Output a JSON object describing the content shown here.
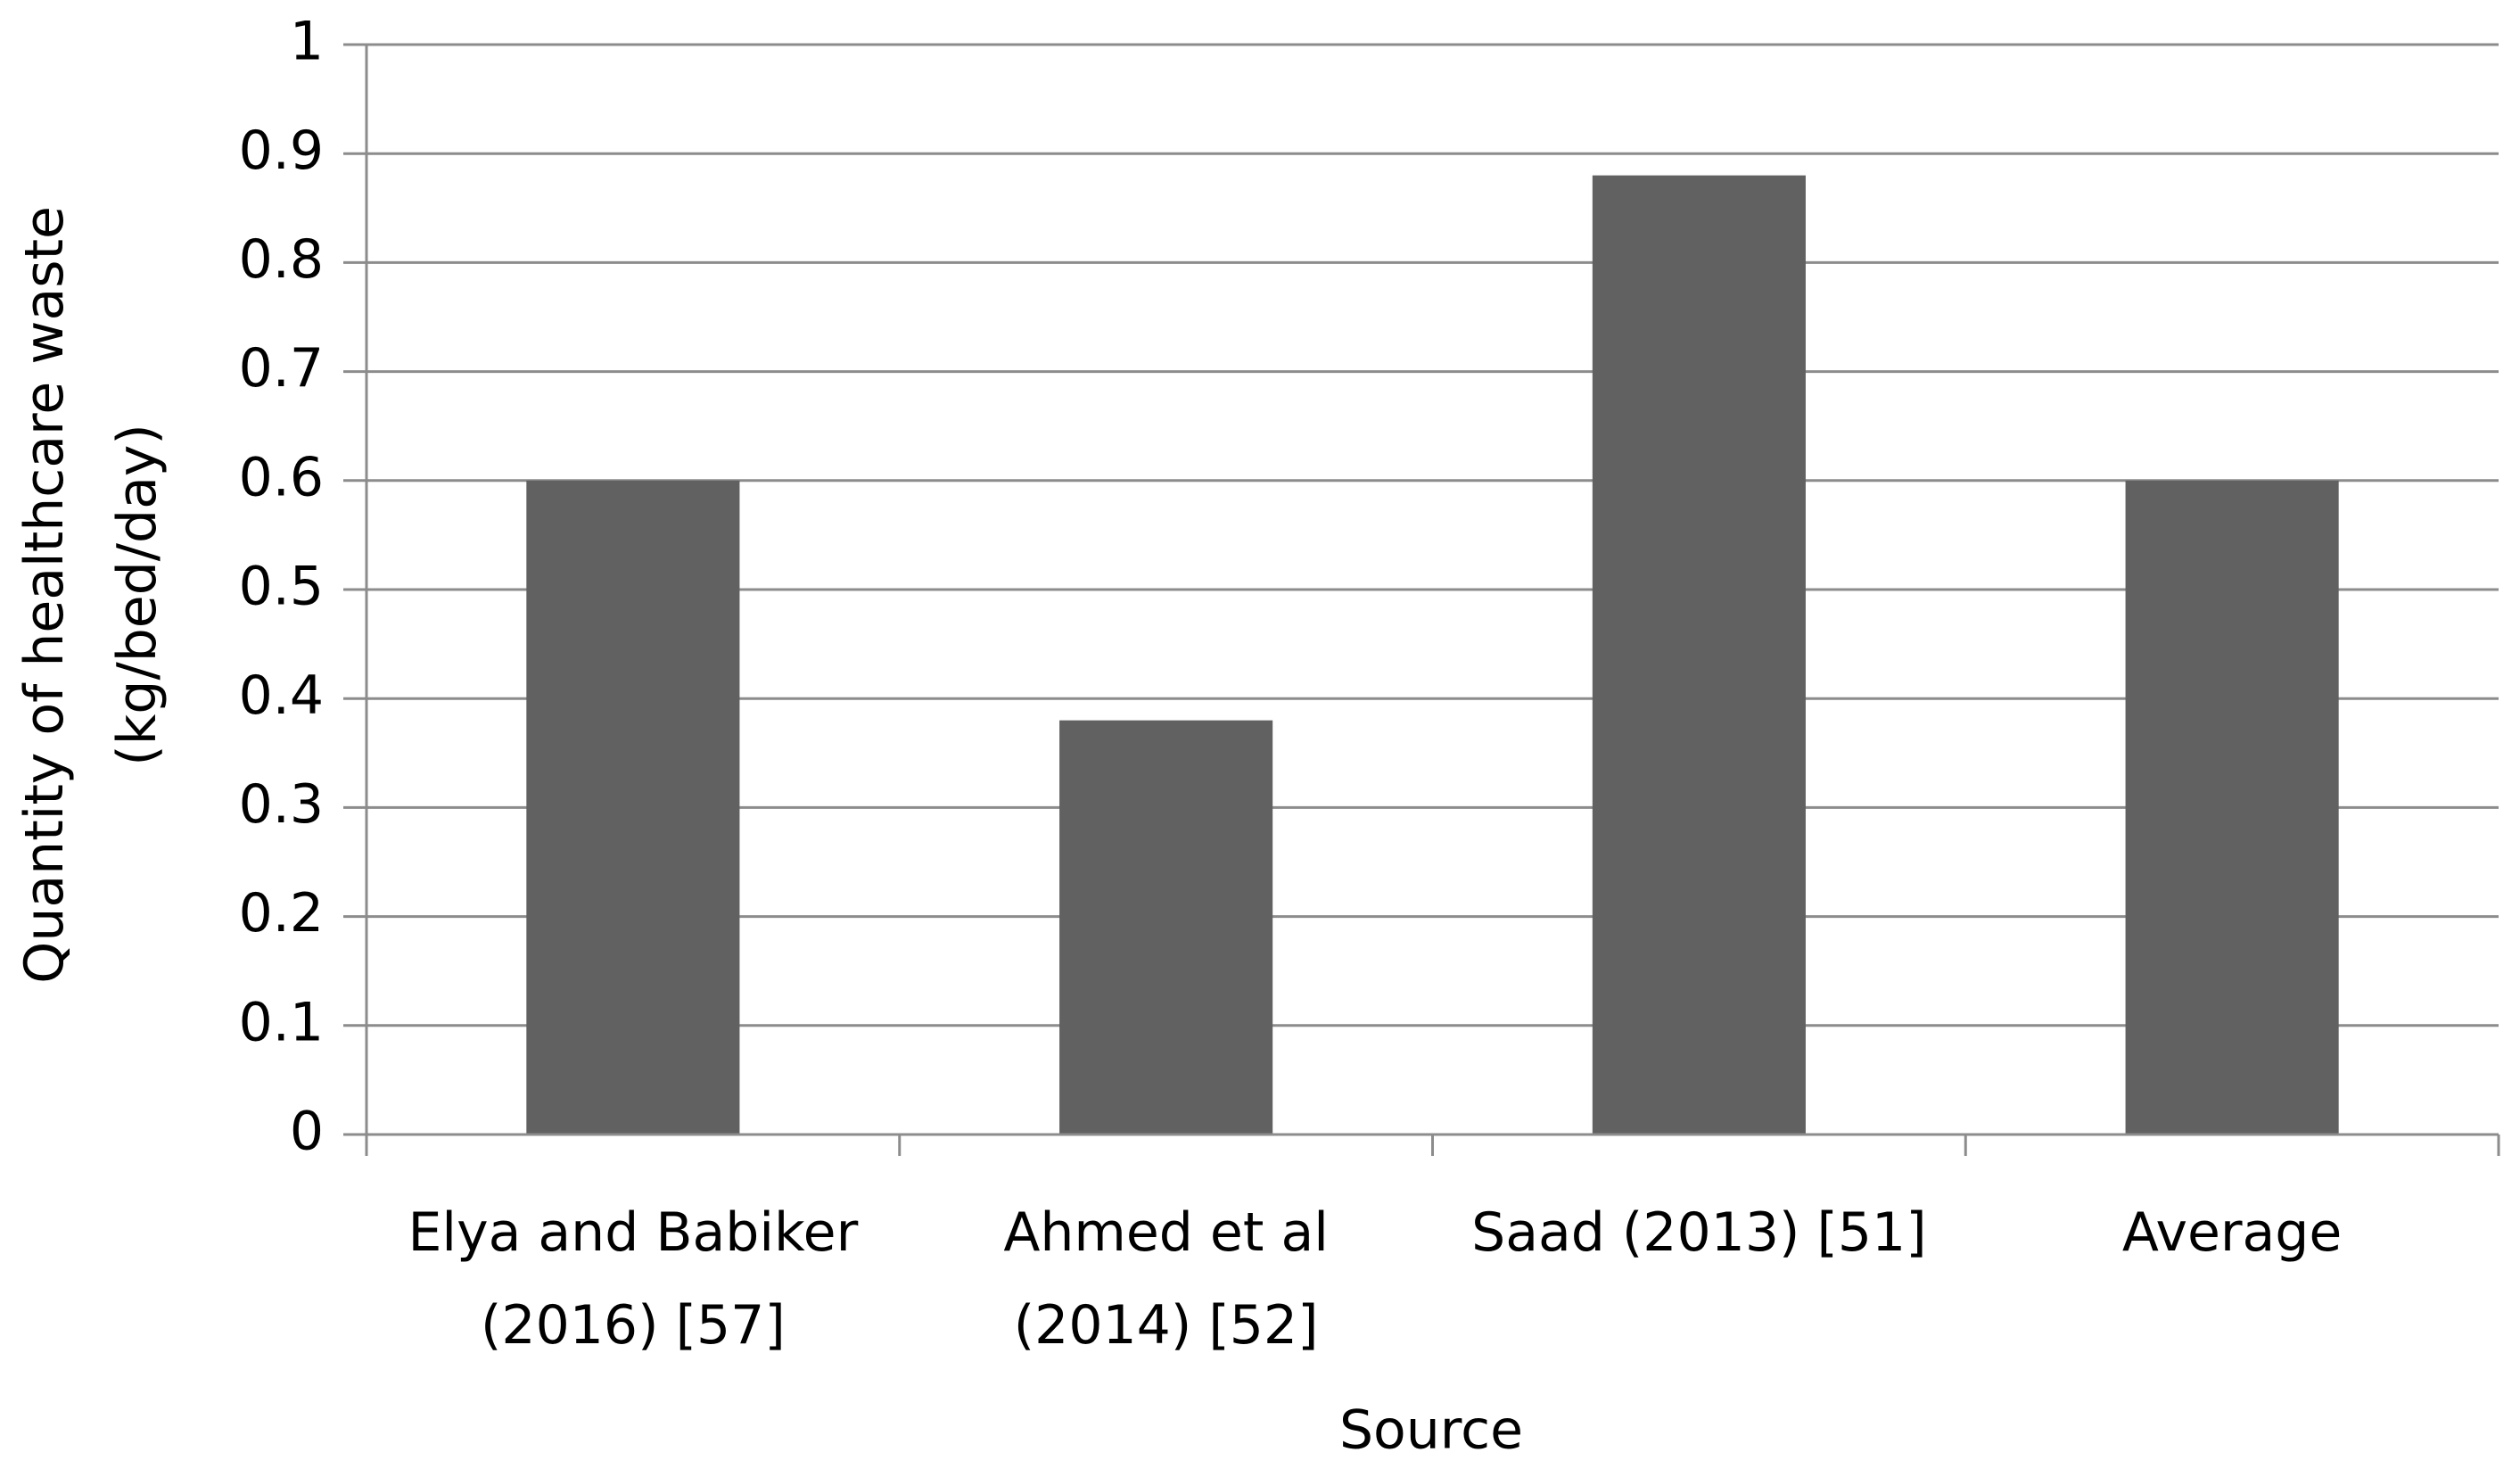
{
  "chart_data": {
    "type": "bar",
    "x_label": "Source",
    "y_label": "Quantity of healthcare waste\n(kg/bed/day)",
    "categories": [
      "Elya and Babiker\n(2016) [57]",
      "Ahmed et al\n(2014) [52]",
      "Saad (2013) [51]",
      "Average"
    ],
    "values": [
      0.6,
      0.38,
      0.88,
      0.6
    ],
    "color": "#616161",
    "ylim": [
      0,
      1
    ],
    "yticks": [
      0,
      0.1,
      0.2,
      0.3,
      0.4,
      0.5,
      0.6,
      0.7,
      0.8,
      0.9,
      1
    ],
    "grid": true
  }
}
